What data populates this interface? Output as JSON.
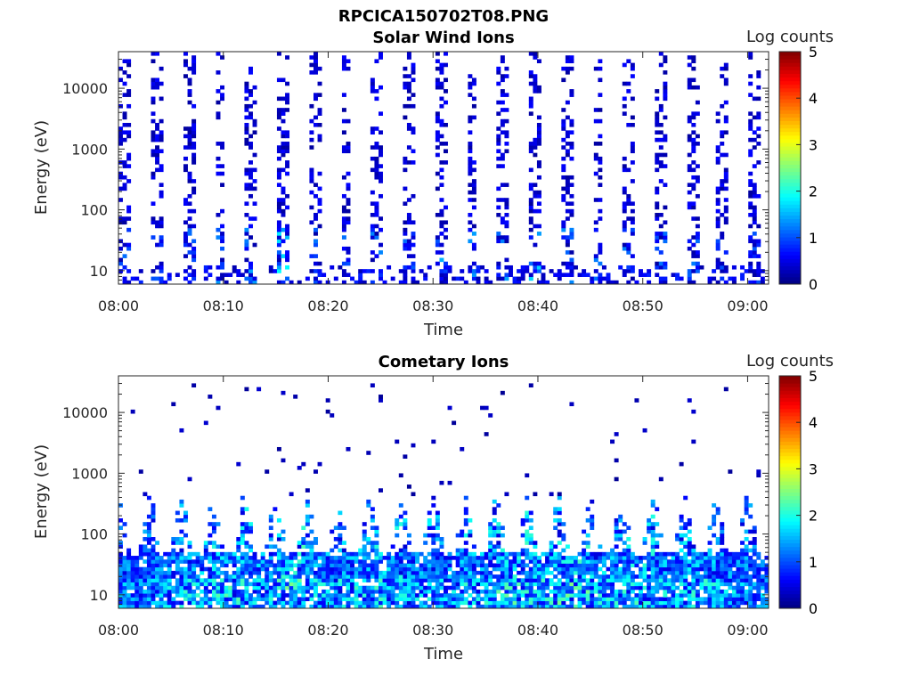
{
  "figure_title": "RPCICA150702T08.PNG",
  "chart_data": [
    {
      "type": "heatmap",
      "title": "Solar Wind Ions",
      "xlabel": "Time",
      "ylabel": "Energy (eV)",
      "x_ticks": [
        "08:00",
        "08:10",
        "08:20",
        "08:30",
        "08:40",
        "08:50",
        "09:00"
      ],
      "x_tick_minutes": [
        0,
        10,
        20,
        30,
        40,
        50,
        60
      ],
      "xlim_minutes": [
        0,
        62
      ],
      "y_ticks": [
        "10",
        "100",
        "1000",
        "10000"
      ],
      "y_tick_values": [
        10,
        100,
        1000,
        10000
      ],
      "ylim": [
        6,
        40000
      ],
      "y_scale": "log",
      "colorbar_label": "Log counts",
      "colorbar_ticks": [
        "0",
        "1",
        "2",
        "3",
        "4",
        "5"
      ],
      "colorbar_range": [
        0,
        5
      ],
      "colormap": "jet",
      "sweep_period_minutes": 3,
      "pattern": "sparse counts (log counts ~0-1) along vertical energy sweeps from ~10 eV to ~30000 eV, strongest (~1.5-2) near 20-40 eV",
      "sweep_peak_log_counts": [
        1.2,
        1.0,
        1.1,
        1.3,
        1.5,
        1.8,
        1.2,
        1.3,
        1.2,
        1.1,
        1.4,
        1.3,
        1.5,
        1.6,
        1.3,
        1.2,
        1.2,
        1.1,
        1.2,
        1.0,
        1.0
      ]
    },
    {
      "type": "heatmap",
      "title": "Cometary Ions",
      "xlabel": "Time",
      "ylabel": "Energy (eV)",
      "x_ticks": [
        "08:00",
        "08:10",
        "08:20",
        "08:30",
        "08:40",
        "08:50",
        "09:00"
      ],
      "x_tick_minutes": [
        0,
        10,
        20,
        30,
        40,
        50,
        60
      ],
      "xlim_minutes": [
        0,
        62
      ],
      "y_ticks": [
        "10",
        "100",
        "1000",
        "10000"
      ],
      "y_tick_values": [
        10,
        100,
        1000,
        10000
      ],
      "ylim": [
        6,
        40000
      ],
      "y_scale": "log",
      "colorbar_label": "Log counts",
      "colorbar_ticks": [
        "0",
        "1",
        "2",
        "3",
        "4",
        "5"
      ],
      "colorbar_range": [
        0,
        5
      ],
      "colormap": "jet",
      "sweep_period_minutes": 3,
      "pattern": "V-shaped enhancements below ~300 eV peaking at ~2-2.5 log counts around 10-40 eV, sparse counts above 1000 eV",
      "sweep_peak_log_counts": [
        1.8,
        2.0,
        2.2,
        2.3,
        2.2,
        2.6,
        2.1,
        2.2,
        2.3,
        2.1,
        2.0,
        2.2,
        2.4,
        2.3,
        2.5,
        2.2,
        2.3,
        2.1,
        2.2,
        2.0,
        1.8
      ]
    }
  ]
}
